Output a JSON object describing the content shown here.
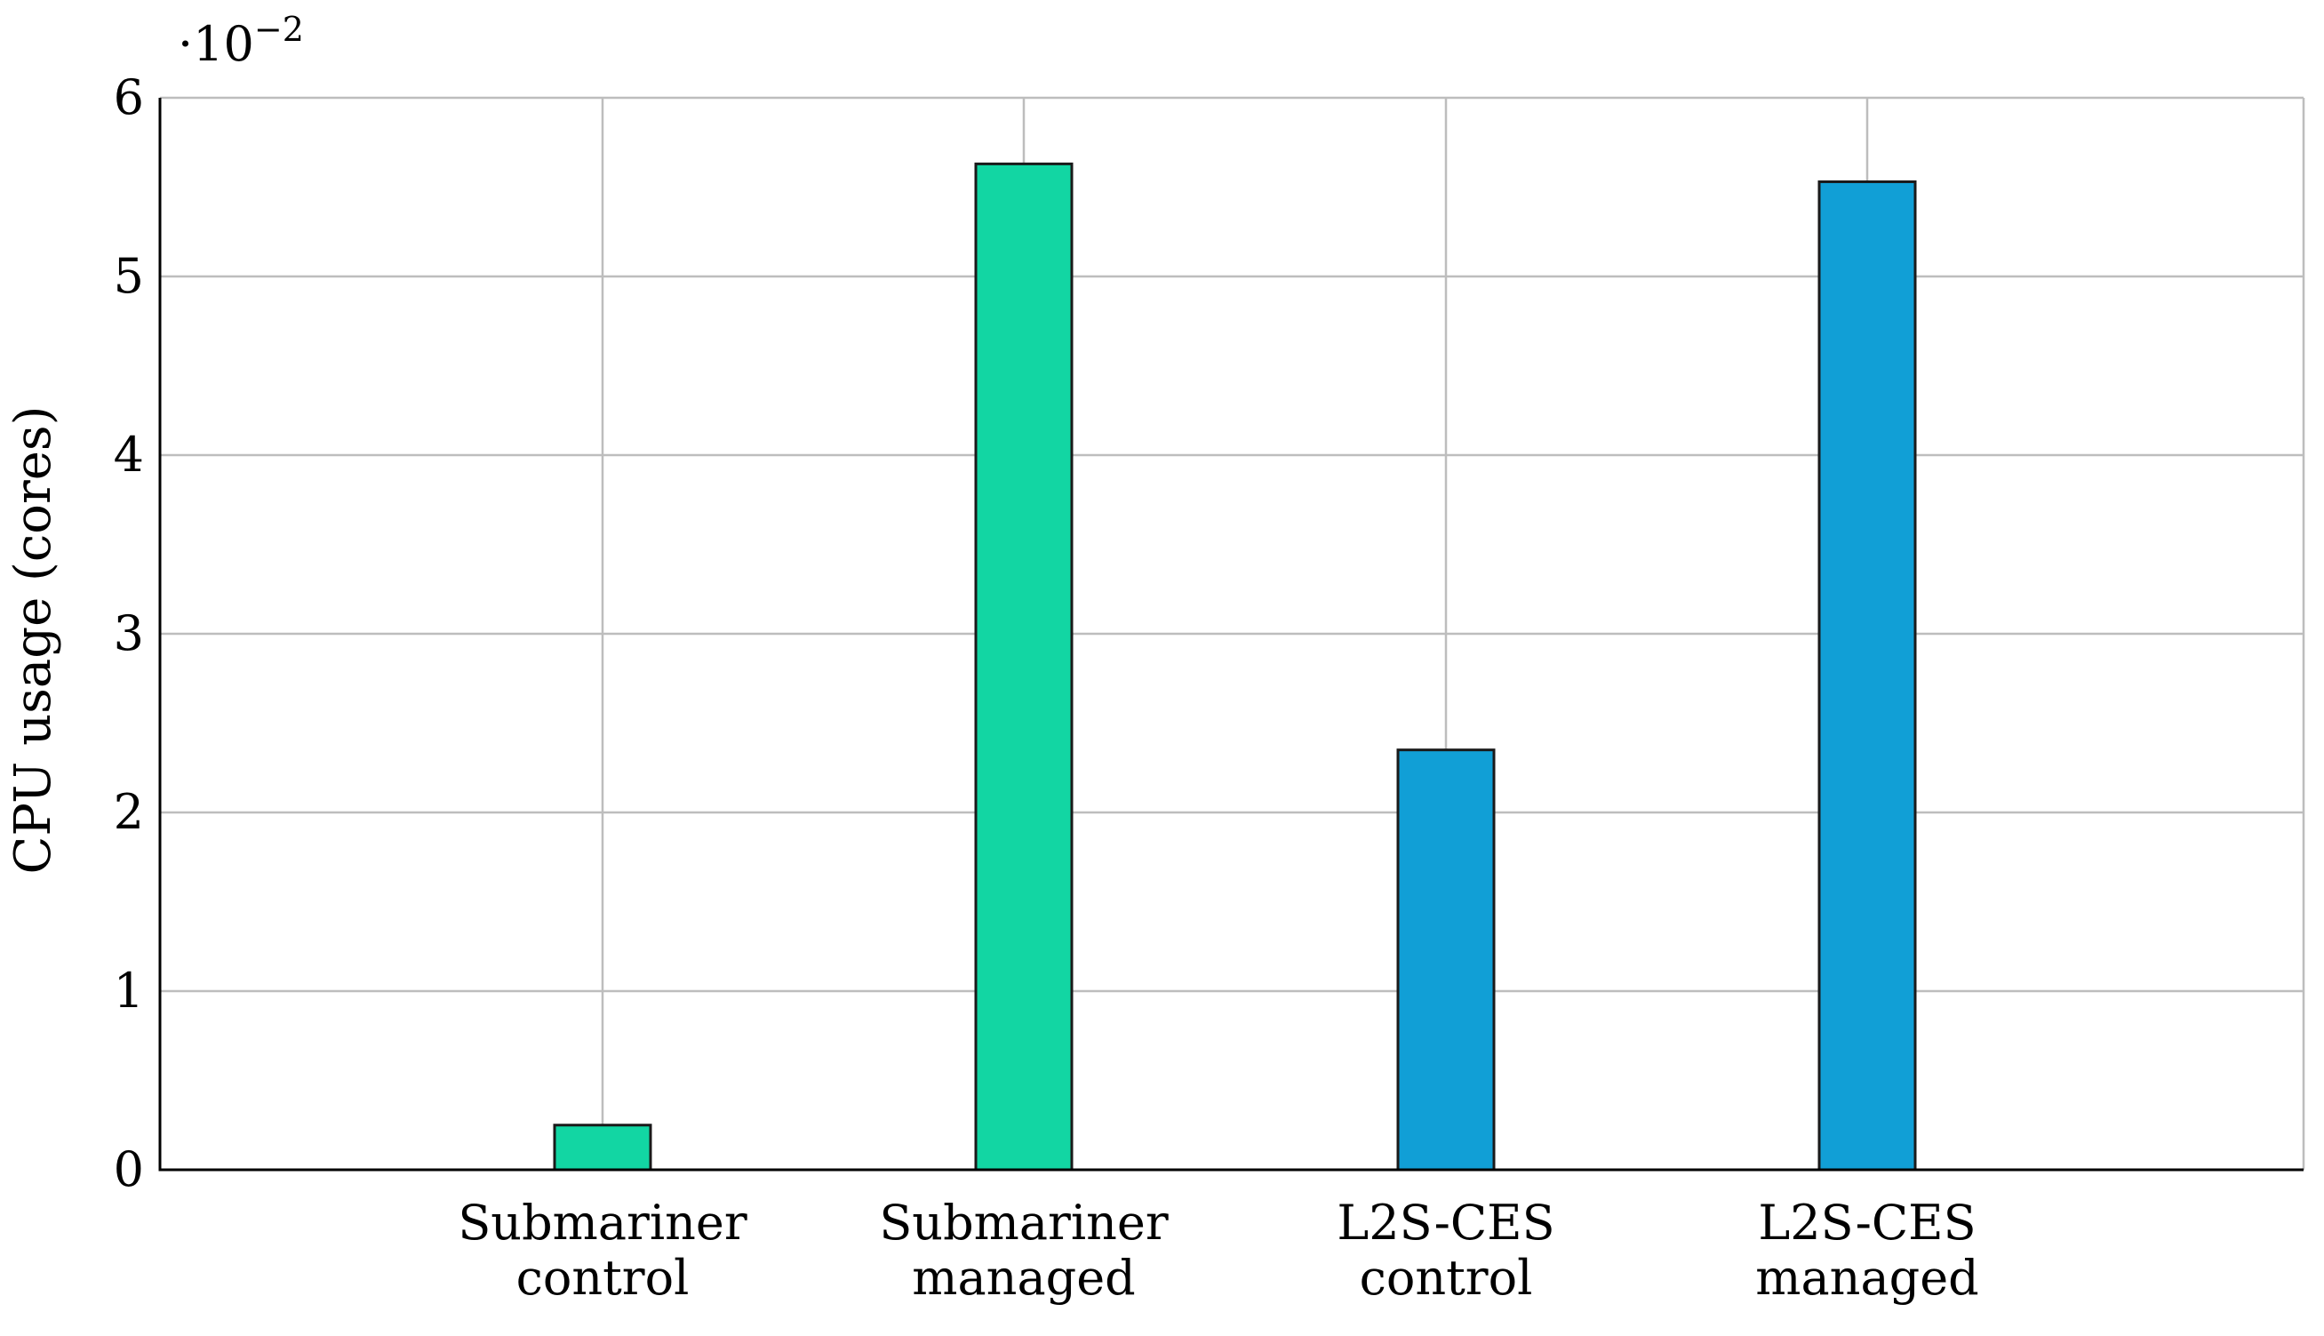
{
  "chart_data": {
    "type": "bar",
    "categories": [
      [
        "Submariner",
        "control"
      ],
      [
        "Submariner",
        "managed"
      ],
      [
        "L2S-CES",
        "control"
      ],
      [
        "L2S-CES",
        "managed"
      ]
    ],
    "values": [
      0.0025,
      0.0563,
      0.0235,
      0.0553
    ],
    "bar_colors": [
      "#12d6a3",
      "#12d6a3",
      "#119fd6",
      "#119fd6"
    ],
    "ylabel": "CPU usage (cores)",
    "ylim": [
      0,
      0.06
    ],
    "yticks": [
      0,
      1,
      2,
      3,
      4,
      5,
      6
    ],
    "ytick_labels": [
      "0",
      "1",
      "2",
      "3",
      "4",
      "5",
      "6"
    ],
    "scale_prefix": "·10",
    "scale_exponent": "−2",
    "grid": true,
    "colors": {
      "grid": "#bdbdbd",
      "axis": "#000000",
      "bar_edge": "#1a1a1a"
    }
  }
}
